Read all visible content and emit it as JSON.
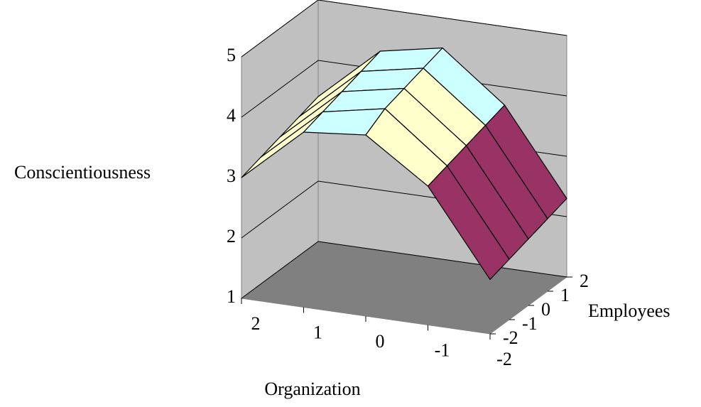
{
  "chart_data": {
    "type": "surface",
    "z_label": "Conscientiousness",
    "x_label": "Organization",
    "y_label": "Employees",
    "categories": [
      2,
      1,
      0,
      -1,
      -2
    ],
    "series": [
      {
        "name": -2,
        "values": [
          3.0,
          3.9,
          4.0,
          3.3,
          1.9
        ]
      },
      {
        "name": -1,
        "values": [
          3.1,
          4.0,
          4.2,
          3.4,
          2.0
        ]
      },
      {
        "name": 0,
        "values": [
          3.2,
          4.1,
          4.3,
          3.5,
          2.1
        ]
      },
      {
        "name": 1,
        "values": [
          3.3,
          4.2,
          4.4,
          3.6,
          2.2
        ]
      },
      {
        "name": 2,
        "values": [
          3.4,
          4.3,
          4.5,
          3.7,
          2.3
        ]
      }
    ],
    "zlim": [
      1,
      5
    ],
    "zticks": [
      1,
      2,
      3,
      4,
      5
    ],
    "band_colors": [
      "#9999ff",
      "#993366",
      "#ffffcc",
      "#ccffff"
    ],
    "wall_color": "#c0c0c0",
    "floor_color": "#808080",
    "grid": true
  }
}
